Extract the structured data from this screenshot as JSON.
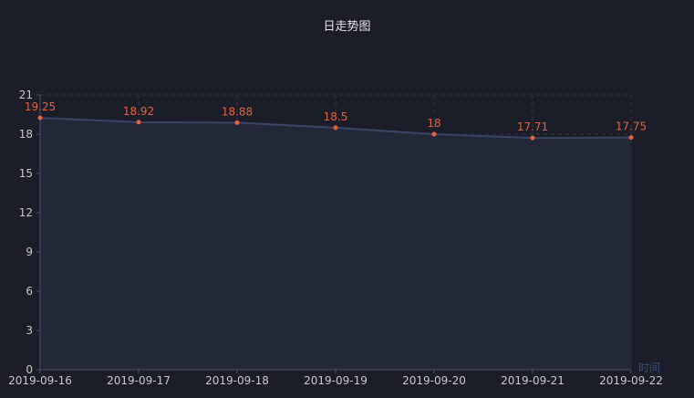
{
  "chart_data": {
    "type": "area",
    "title": "日走势图",
    "xlabel": "时间",
    "ylabel": "",
    "categories": [
      "2019-09-16",
      "2019-09-17",
      "2019-09-18",
      "2019-09-19",
      "2019-09-20",
      "2019-09-21",
      "2019-09-22"
    ],
    "series": [
      {
        "values": [
          19.25,
          18.92,
          18.88,
          18.5,
          18,
          17.71,
          17.75
        ]
      }
    ],
    "ylim": [
      0,
      21
    ],
    "yticks": [
      0,
      3,
      6,
      9,
      12,
      15,
      18,
      21
    ],
    "data_labels": [
      "19.25",
      "18.92",
      "18.88",
      "18.5",
      "18",
      "17.71",
      "17.75"
    ],
    "grid": true,
    "colors": {
      "background": "#1b1e28",
      "line": "#3a4566",
      "area": "#232838",
      "point": "#e8613c",
      "label": "#e8613c",
      "grid": "#2f3546",
      "axis_text": "#c9c9c9",
      "xlabel_text": "#3a4d7a"
    }
  }
}
